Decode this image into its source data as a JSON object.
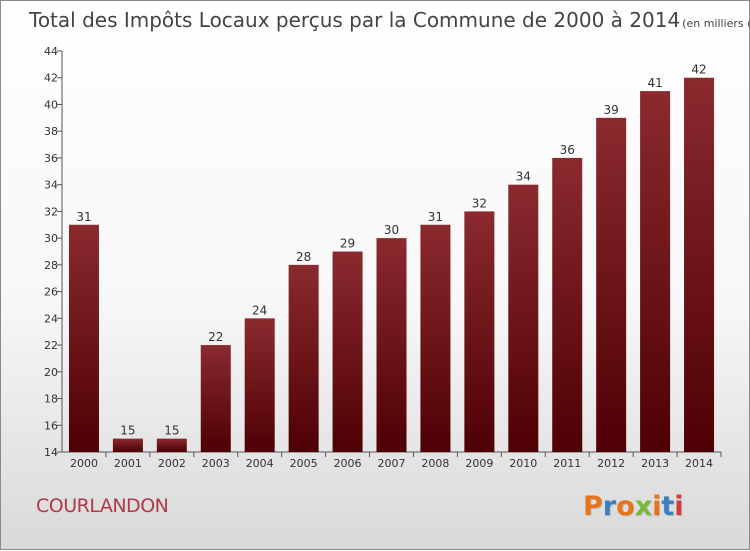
{
  "chart_data": {
    "type": "bar",
    "title": "Total des Impôts Locaux perçus par la Commune de 2000 à 2014",
    "unit_label": "(en milliers d'€)",
    "categories": [
      "2000",
      "2001",
      "2002",
      "2003",
      "2004",
      "2005",
      "2006",
      "2007",
      "2008",
      "2009",
      "2010",
      "2011",
      "2012",
      "2013",
      "2014"
    ],
    "values": [
      31,
      15,
      15,
      22,
      24,
      28,
      29,
      30,
      31,
      32,
      34,
      36,
      39,
      41,
      42
    ],
    "ylim": [
      14,
      44
    ],
    "yticks": [
      14,
      16,
      18,
      20,
      22,
      24,
      26,
      28,
      30,
      32,
      34,
      36,
      38,
      40,
      42,
      44
    ],
    "xlabel": "",
    "ylabel": "",
    "grid": false
  },
  "footer": {
    "commune": "COURLANDON",
    "logo_text": "Proxiti",
    "logo_colors": [
      "#e8731a",
      "#3a7fc4",
      "#e8731a",
      "#7ab83a",
      "#e8731a",
      "#3a7fc4",
      "#d63a3a"
    ]
  },
  "colors": {
    "bar_top": "#8a2a2f",
    "bar_bottom": "#4e0004"
  }
}
